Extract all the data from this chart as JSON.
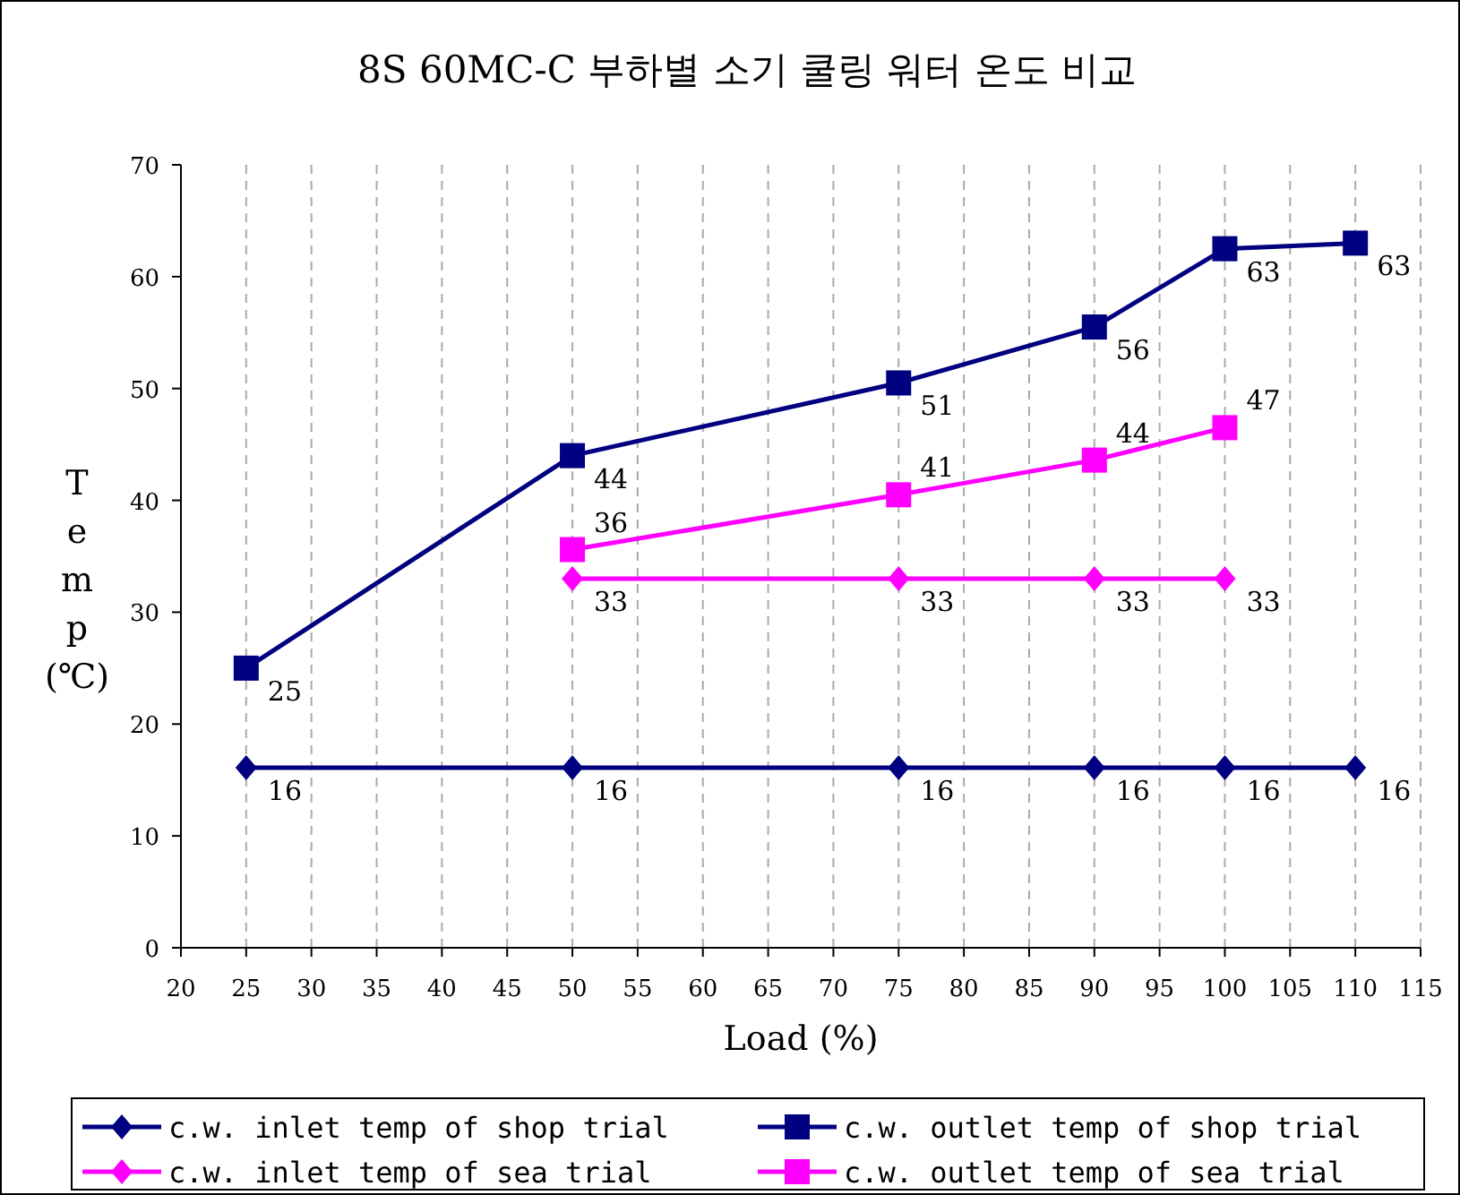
{
  "chart_data": {
    "type": "line",
    "title": "8S 60MC-C 부하별 소기 쿨링 워터 온도 비교",
    "xlabel": "Load (%)",
    "ylabel": "Temp (℃)",
    "xlim": [
      20,
      115
    ],
    "xticks": [
      20,
      25,
      30,
      35,
      40,
      45,
      50,
      55,
      60,
      65,
      70,
      75,
      80,
      85,
      90,
      95,
      100,
      105,
      110,
      115
    ],
    "ylim": [
      0,
      70
    ],
    "yticks": [
      0,
      10,
      20,
      30,
      40,
      50,
      60,
      70
    ],
    "grid": "x",
    "legend": "bottom",
    "series": [
      {
        "name": "c.w. inlet temp of shop trial",
        "color": "#000080",
        "marker": "diamond",
        "x": [
          25,
          50,
          75,
          90,
          100,
          110
        ],
        "values": [
          16.1,
          16.1,
          16.1,
          16.1,
          16.1,
          16.1
        ],
        "value_labels": [
          "16",
          "16",
          "16",
          "16",
          "16",
          "16"
        ]
      },
      {
        "name": "c.w. outlet temp of shop trial",
        "color": "#000080",
        "marker": "square",
        "x": [
          25,
          50,
          75,
          90,
          100,
          110
        ],
        "values": [
          25,
          44,
          50.5,
          55.5,
          62.5,
          63
        ],
        "value_labels": [
          "25",
          "44",
          "51",
          "56",
          "63",
          "63"
        ]
      },
      {
        "name": "c.w. inlet temp of sea trial",
        "color": "#ff00ff",
        "marker": "diamond",
        "x": [
          50,
          75,
          90,
          100
        ],
        "values": [
          33,
          33,
          33,
          33
        ],
        "value_labels": [
          "33",
          "33",
          "33",
          "33"
        ]
      },
      {
        "name": "c.w. outlet temp of sea trial",
        "color": "#ff00ff",
        "marker": "square",
        "x": [
          50,
          75,
          90,
          100
        ],
        "values": [
          35.6,
          40.5,
          43.6,
          46.5
        ],
        "value_labels": [
          "36",
          "41",
          "44",
          "47"
        ]
      }
    ]
  }
}
